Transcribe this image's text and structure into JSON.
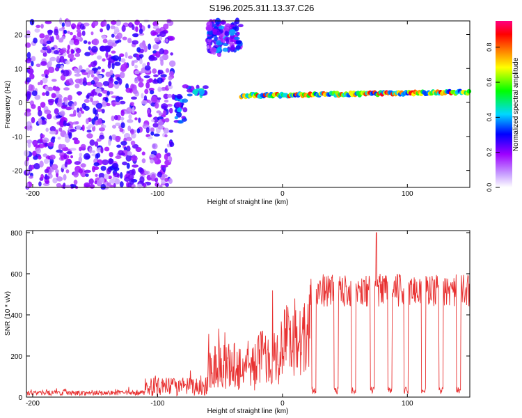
{
  "title": "S196.2025.311.13.37.C26",
  "chart_data": [
    {
      "type": "heatmap",
      "xlabel": "Height of straight line (km)",
      "ylabel": "Frequency (Hz)",
      "xlim": [
        -205,
        150
      ],
      "ylim": [
        -25,
        24
      ],
      "xticks": [
        -200,
        -100,
        0,
        100
      ],
      "yticks": [
        -20,
        -10,
        0,
        10,
        20
      ],
      "colorbar": {
        "label": "Normalized spectral amplitude",
        "range": [
          0,
          0.95
        ],
        "ticks": [
          "0.0",
          "0.2",
          "0.4",
          "0.6",
          "0.8"
        ],
        "colors": [
          "#ffffff",
          "#9d00ff",
          "#0000ff",
          "#00d8ff",
          "#00ff00",
          "#ffff00",
          "#ff8000",
          "#ff0000",
          "#ff0080"
        ]
      },
      "regions": [
        {
          "name": "noise",
          "x_range": [
            -205,
            -88
          ],
          "f_range": [
            -25,
            24
          ],
          "amplitude": [
            0.05,
            0.3
          ]
        },
        {
          "name": "burst",
          "x_range": [
            -88,
            -78
          ],
          "f_range": [
            -6,
            2
          ],
          "amplitude": [
            0.2,
            0.45
          ]
        },
        {
          "name": "burst",
          "x_range": [
            -78,
            -60
          ],
          "f_range": [
            2,
            5
          ],
          "amplitude": [
            0.2,
            0.5
          ]
        },
        {
          "name": "gap",
          "x_range": [
            -60,
            -48
          ],
          "f_range": [
            14,
            24
          ],
          "amplitude": [
            0.1,
            0.3
          ]
        },
        {
          "name": "high-band",
          "x_range": [
            -60,
            -33
          ],
          "f_range": [
            15,
            24
          ],
          "amplitude": [
            0.15,
            0.4
          ]
        },
        {
          "name": "tonal-line",
          "x_range": [
            -33,
            150
          ],
          "f_start": 2.0,
          "f_end": 3.0,
          "amplitude": [
            0.3,
            0.9
          ]
        }
      ]
    },
    {
      "type": "line",
      "xlabel": "Height of straight line (km)",
      "ylabel": "SNR (10 * v/v)",
      "xlim": [
        -205,
        150
      ],
      "ylim": [
        0,
        810
      ],
      "xticks": [
        -200,
        -100,
        0,
        100
      ],
      "yticks": [
        0,
        200,
        400,
        600,
        800
      ],
      "color": "#e83030",
      "segments": [
        {
          "x_range": [
            -205,
            -110
          ],
          "mean": 20,
          "noise": 12
        },
        {
          "x_range": [
            -110,
            -60
          ],
          "mean": 50,
          "noise": 45
        },
        {
          "x_range": [
            -60,
            -20
          ],
          "mean": 150,
          "noise": 120
        },
        {
          "x_range": [
            -20,
            0
          ],
          "mean": 200,
          "noise": 140
        },
        {
          "x_range": [
            0,
            22
          ],
          "mean": 280,
          "noise": 180
        },
        {
          "x_range": [
            22,
            150
          ],
          "mean": 520,
          "noise": 80
        }
      ],
      "dips": [
        25,
        43,
        57,
        72,
        86,
        99,
        113,
        127,
        141
      ],
      "peak": {
        "x": 75,
        "y": 800
      }
    }
  ]
}
